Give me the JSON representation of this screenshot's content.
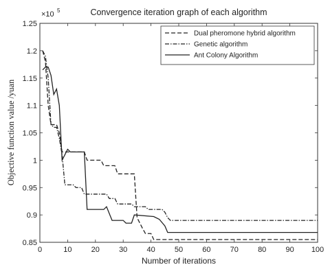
{
  "chart_data": {
    "type": "line",
    "title": "Convergence iteration graph of each algorithm",
    "xlabel": "Number of iterations",
    "ylabel": "Objective function value /yuan",
    "y_exponent_label": "×10",
    "y_exponent_power": "5",
    "xlim": [
      0,
      100
    ],
    "ylim": [
      0.85,
      1.25
    ],
    "xticks": [
      0,
      10,
      20,
      30,
      40,
      50,
      60,
      70,
      80,
      90,
      100
    ],
    "yticks": [
      0.85,
      0.9,
      0.95,
      1.0,
      1.05,
      1.1,
      1.15,
      1.2,
      1.25
    ],
    "xtick_labels": [
      "0",
      "10",
      "20",
      "30",
      "40",
      "50",
      "60",
      "70",
      "80",
      "90",
      "100"
    ],
    "ytick_labels": [
      "0.85",
      "0.9",
      "0.95",
      "1",
      "1.05",
      "1.1",
      "1.15",
      "1.2",
      "1.25"
    ],
    "grid": false,
    "legend_position": "top-right",
    "series": [
      {
        "name": "Dual pheromone hybrid algorithm",
        "style": "dashed",
        "color": "#222222",
        "points": [
          [
            1,
            1.2
          ],
          [
            2,
            1.18
          ],
          [
            3,
            1.1
          ],
          [
            4,
            1.065
          ],
          [
            6,
            1.065
          ],
          [
            7,
            1.05
          ],
          [
            8,
            1.015
          ],
          [
            16,
            1.015
          ],
          [
            17,
            1.0
          ],
          [
            22,
            1.0
          ],
          [
            23,
            0.99
          ],
          [
            27,
            0.99
          ],
          [
            28,
            0.975
          ],
          [
            34,
            0.975
          ],
          [
            35,
            0.895
          ],
          [
            37,
            0.875
          ],
          [
            38,
            0.866
          ],
          [
            40,
            0.866
          ],
          [
            41,
            0.855
          ],
          [
            100,
            0.855
          ]
        ]
      },
      {
        "name": "Genetic algorithm",
        "style": "dash-dot",
        "color": "#222222",
        "points": [
          [
            1,
            1.2
          ],
          [
            2,
            1.19
          ],
          [
            3,
            1.15
          ],
          [
            4,
            1.065
          ],
          [
            5,
            1.06
          ],
          [
            6,
            1.06
          ],
          [
            7,
            1.04
          ],
          [
            8,
            1.01
          ],
          [
            9,
            0.955
          ],
          [
            12,
            0.955
          ],
          [
            13,
            0.95
          ],
          [
            15,
            0.95
          ],
          [
            16,
            0.938
          ],
          [
            24,
            0.938
          ],
          [
            25,
            0.93
          ],
          [
            27,
            0.93
          ],
          [
            28,
            0.92
          ],
          [
            33,
            0.92
          ],
          [
            34,
            0.915
          ],
          [
            38,
            0.915
          ],
          [
            39,
            0.91
          ],
          [
            44,
            0.91
          ],
          [
            45,
            0.905
          ],
          [
            46,
            0.895
          ],
          [
            47,
            0.89
          ],
          [
            100,
            0.89
          ]
        ]
      },
      {
        "name": "Ant Colony Algorithm",
        "style": "solid",
        "color": "#222222",
        "points": [
          [
            1,
            1.165
          ],
          [
            2,
            1.17
          ],
          [
            3,
            1.17
          ],
          [
            4,
            1.155
          ],
          [
            5,
            1.12
          ],
          [
            6,
            1.13
          ],
          [
            7,
            1.1
          ],
          [
            8,
            1.0
          ],
          [
            9,
            1.01
          ],
          [
            10,
            1.02
          ],
          [
            11,
            1.015
          ],
          [
            16,
            1.015
          ],
          [
            17,
            0.91
          ],
          [
            23,
            0.91
          ],
          [
            24,
            0.915
          ],
          [
            26,
            0.89
          ],
          [
            30,
            0.89
          ],
          [
            31,
            0.885
          ],
          [
            33,
            0.885
          ],
          [
            34,
            0.9
          ],
          [
            41,
            0.897
          ],
          [
            43,
            0.892
          ],
          [
            45,
            0.88
          ],
          [
            46,
            0.868
          ],
          [
            100,
            0.868
          ]
        ]
      }
    ]
  }
}
